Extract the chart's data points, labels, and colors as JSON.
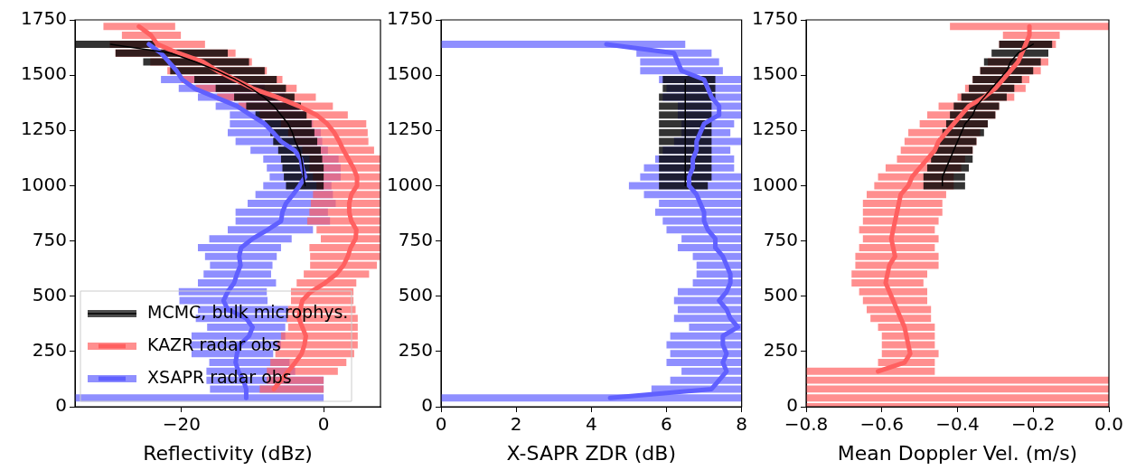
{
  "chart_data": [
    {
      "type": "line",
      "xlabel": "Reflectivity (dBz)",
      "xlim": [
        -35,
        8
      ],
      "xticks": [
        {
          "value": -20,
          "label": "−20"
        },
        0
      ],
      "ylim": [
        0,
        1750
      ],
      "yticks": [
        0,
        250,
        500,
        750,
        1000,
        1250,
        1500,
        1750
      ],
      "legend": "bottom left",
      "series": [
        {
          "name": "MCMC, bulk microphys.",
          "color": "#000000",
          "values": [
            1640,
            1600,
            1560,
            1520,
            1480,
            1440,
            1400,
            1360,
            1320,
            1280,
            1240,
            1200,
            1160,
            1120,
            1080,
            1040,
            1000
          ],
          "x": [
            -30,
            -21.5,
            -18,
            -15,
            -12.4,
            -10.2,
            -8.4,
            -7,
            -6,
            -5,
            -4.4,
            -4,
            -3.4,
            -3.1,
            -2.9,
            -2.8,
            -2.6
          ],
          "xerrors": [
            [
              -35,
              -23.7
            ],
            [
              -29.3,
              -13.5
            ],
            [
              -25.4,
              -10.5
            ],
            [
              -21.6,
              -8.3
            ],
            [
              -18.2,
              -6.6
            ],
            [
              -15.2,
              -5.3
            ],
            [
              -12.6,
              -4.1
            ],
            [
              -10.9,
              -3.2
            ],
            [
              -9.6,
              -2.4
            ],
            [
              -8.3,
              -1.7
            ],
            [
              -7.5,
              -1.3
            ],
            [
              -7.1,
              -0.9
            ],
            [
              -6.4,
              -0.4
            ],
            [
              -6,
              -0.2
            ],
            [
              -5.8,
              0
            ],
            [
              -5.6,
              0
            ],
            [
              -5.3,
              0
            ]
          ]
        },
        {
          "name": "KAZR radar obs",
          "color": "#ff6060",
          "values": [
            1720,
            1680,
            1640,
            1600,
            1560,
            1520,
            1480,
            1440,
            1400,
            1360,
            1320,
            1280,
            1240,
            1200,
            1160,
            1120,
            1080,
            1040,
            1000,
            960,
            920,
            880,
            840,
            800,
            760,
            720,
            680,
            640,
            600,
            560,
            520,
            480,
            440,
            400,
            360,
            320,
            280,
            240,
            200,
            160,
            120,
            80
          ],
          "x": [
            -26,
            -24.3,
            -23.4,
            -20.5,
            -17,
            -15,
            -12.5,
            -10,
            -6.5,
            -3.5,
            -1,
            0.5,
            1.5,
            2.2,
            2.8,
            3.5,
            4.2,
            4.7,
            4.7,
            3.9,
            3.6,
            3.6,
            3.9,
            4.6,
            4.5,
            3.8,
            3.4,
            2.8,
            1.8,
            0.2,
            -1.8,
            -3,
            -3.3,
            -3.5,
            -3,
            -2.5,
            -2.7,
            -3.1,
            -4,
            -5,
            -6,
            -7
          ],
          "xerrors": [
            [
              -31,
              -20.9
            ],
            [
              -28.4,
              -20.1
            ],
            [
              -30.1,
              -16.7
            ],
            [
              -29.3,
              -12.4
            ],
            [
              -24.4,
              -10.1
            ],
            [
              -22,
              -8
            ],
            [
              -20,
              -5.8
            ],
            [
              -18,
              -3.8
            ],
            [
              -15,
              -1.1
            ],
            [
              -12,
              1.3
            ],
            [
              -9,
              3.4
            ],
            [
              -6,
              6
            ],
            [
              -5,
              6.2
            ],
            [
              -4,
              6.3
            ],
            [
              -3,
              7.1
            ],
            [
              -2,
              8
            ],
            [
              -2,
              8
            ],
            [
              -1.5,
              8
            ],
            [
              -1,
              8
            ],
            [
              -1.5,
              8
            ],
            [
              -1.8,
              8
            ],
            [
              -2,
              8
            ],
            [
              -2.3,
              8
            ],
            [
              -1,
              8
            ],
            [
              -0.4,
              8
            ],
            [
              -2,
              8
            ],
            [
              -1.9,
              8
            ],
            [
              -1.9,
              7.5
            ],
            [
              -2.8,
              6.4
            ],
            [
              -3.8,
              4.6
            ],
            [
              -4.6,
              4.2
            ],
            [
              -4.6,
              4.2
            ],
            [
              -5,
              4.5
            ],
            [
              -5.2,
              4.8
            ],
            [
              -5,
              4.8
            ],
            [
              -6,
              4.8
            ],
            [
              -6.5,
              4.8
            ],
            [
              -6.8,
              4.3
            ],
            [
              -7.5,
              3.2
            ],
            [
              -8,
              2
            ],
            [
              -8,
              0
            ],
            [
              -9,
              0
            ]
          ]
        },
        {
          "name": "XSAPR radar obs",
          "color": "#6060ff",
          "values": [
            1640,
            1600,
            1560,
            1520,
            1480,
            1440,
            1400,
            1360,
            1320,
            1280,
            1240,
            1200,
            1160,
            1120,
            1080,
            1040,
            1000,
            960,
            920,
            880,
            840,
            800,
            760,
            720,
            680,
            640,
            600,
            560,
            520,
            480,
            440,
            400,
            360,
            320,
            280,
            240,
            200,
            160,
            120,
            80,
            40
          ],
          "x": [
            -24.6,
            -22.9,
            -21.8,
            -20.7,
            -19.9,
            -18.2,
            -15.2,
            -12.2,
            -10.3,
            -8.3,
            -7.1,
            -6,
            -4.1,
            -3.2,
            -3,
            -2.6,
            -3.4,
            -4.3,
            -5.3,
            -5.8,
            -6,
            -7.9,
            -10,
            -11.6,
            -11.9,
            -11.7,
            -12.2,
            -12.6,
            -13.5,
            -14.1,
            -13.5,
            -10.9,
            -10,
            -10.5,
            -11.8,
            -12.2,
            -12.4,
            -12,
            -11.3,
            -10.9,
            -10.9
          ],
          "xerrors": [
            null,
            null,
            null,
            null,
            [
              -22.9,
              -11.8
            ],
            [
              -20.4,
              -8.3
            ],
            [
              -17.7,
              -5.5
            ],
            [
              -15.2,
              -3.5
            ],
            [
              -13.2,
              -2.5
            ],
            [
              -13.2,
              -1.5
            ],
            [
              -13.5,
              -0.4
            ],
            [
              -12.4,
              -0.2
            ],
            [
              -10.3,
              0.6
            ],
            [
              -8.5,
              2.1
            ],
            [
              -8,
              2.4
            ],
            [
              -7.6,
              2.4
            ],
            [
              -8.5,
              1.1
            ],
            [
              -9.6,
              1.3
            ],
            [
              -10.7,
              1.7
            ],
            [
              -12.4,
              0.6
            ],
            [
              -12.4,
              0.9
            ],
            [
              -13.5,
              -1.5
            ],
            [
              -16.1,
              -4.5
            ],
            [
              -17.7,
              -6
            ],
            [
              -16.7,
              -6.6
            ],
            [
              -16,
              -7.2
            ],
            [
              -16.9,
              -7.4
            ],
            [
              -17.7,
              -6.7
            ],
            [
              -20.4,
              -8
            ],
            [
              -20.3,
              -7.9
            ],
            [
              -17.7,
              -5
            ],
            [
              -18,
              -5.1
            ],
            [
              -16.4,
              -5.4
            ],
            [
              -18.6,
              -5.4
            ],
            [
              -18.8,
              -6
            ],
            [
              -18.6,
              -7.1
            ],
            [
              -16.1,
              -4.8
            ],
            [
              -16.5,
              -4
            ],
            [
              -16.5,
              0
            ],
            [
              -16,
              0
            ],
            [
              -35,
              0
            ]
          ]
        }
      ]
    },
    {
      "type": "line",
      "xlabel": "X-SAPR ZDR (dB)",
      "xlim": [
        0,
        8
      ],
      "xticks": [
        0,
        2,
        4,
        6,
        8
      ],
      "ylim": [
        0,
        1750
      ],
      "yticks": [
        0,
        250,
        500,
        750,
        1000,
        1250,
        1500,
        1750
      ],
      "series": [
        {
          "color": "#000000",
          "values": [
            1480,
            1440,
            1400,
            1360,
            1320,
            1280,
            1240,
            1200,
            1160,
            1120,
            1080,
            1040,
            1000
          ],
          "x": [
            6.5,
            6.5,
            6.5,
            6.5,
            6.5,
            6.5,
            6.5,
            6.5,
            6.5,
            6.5,
            6.5,
            6.5,
            6.5
          ],
          "xerrors": [
            [
              5.9,
              7.3
            ],
            [
              5.9,
              7.3
            ],
            [
              5.8,
              7.3
            ],
            [
              5.8,
              7.2
            ],
            [
              5.8,
              7.2
            ],
            [
              5.8,
              7.2
            ],
            [
              5.8,
              7.2
            ],
            [
              5.8,
              7.2
            ],
            [
              5.8,
              7.2
            ],
            [
              5.8,
              7.2
            ],
            [
              5.8,
              7.2
            ],
            [
              5.8,
              7.2
            ],
            [
              5.8,
              7.1
            ]
          ]
        },
        {
          "color": "#6060ff",
          "values": [
            1640,
            1600,
            1560,
            1520,
            1480,
            1440,
            1400,
            1360,
            1320,
            1280,
            1240,
            1200,
            1160,
            1120,
            1080,
            1040,
            1000,
            960,
            920,
            880,
            840,
            800,
            760,
            720,
            680,
            640,
            600,
            560,
            520,
            480,
            440,
            400,
            360,
            320,
            280,
            240,
            200,
            160,
            120,
            80,
            40
          ],
          "x": [
            4.4,
            6.2,
            6.3,
            6.4,
            7,
            7.1,
            7.2,
            7.4,
            7.4,
            7,
            6.9,
            6.8,
            6.8,
            6.7,
            6.7,
            6.6,
            6.6,
            6.8,
            6.9,
            7,
            7,
            7.1,
            7.3,
            7.3,
            7.5,
            7.6,
            7.7,
            7.7,
            7.6,
            7.4,
            7.6,
            7.7,
            7.9,
            7.5,
            7.5,
            7.6,
            7.5,
            7.6,
            7.4,
            7.2,
            4.5
          ],
          "xerrors": [
            [
              0,
              6.5
            ],
            [
              5.2,
              7.2
            ],
            [
              5.3,
              7.4
            ],
            [
              5.3,
              7.5
            ],
            [
              5.8,
              8
            ],
            [
              6,
              8
            ],
            [
              5.9,
              8
            ],
            [
              6.3,
              8
            ],
            [
              6.3,
              8
            ],
            [
              6.4,
              7.8
            ],
            [
              6.4,
              7.7
            ],
            [
              6.2,
              8
            ],
            [
              5.9,
              7.7
            ],
            [
              5.7,
              7.8
            ],
            [
              5.4,
              7.8
            ],
            [
              5.3,
              8
            ],
            [
              5,
              8
            ],
            [
              5.4,
              8
            ],
            [
              5.8,
              8
            ],
            [
              5.7,
              8
            ],
            [
              5.9,
              8
            ],
            [
              6,
              8
            ],
            [
              6.4,
              8
            ],
            [
              6.3,
              8
            ],
            [
              6.7,
              8
            ],
            [
              6.8,
              8
            ],
            [
              6.8,
              8
            ],
            [
              6.7,
              8
            ],
            [
              6.3,
              8
            ],
            [
              6.2,
              8
            ],
            [
              6.3,
              8
            ],
            [
              6.2,
              8
            ],
            [
              6.6,
              8
            ],
            [
              6.1,
              8
            ],
            [
              6,
              8
            ],
            [
              6.1,
              8
            ],
            [
              6,
              8
            ],
            [
              6.4,
              8
            ],
            [
              6.1,
              8
            ],
            [
              5.6,
              8
            ],
            [
              0,
              8
            ]
          ]
        }
      ]
    },
    {
      "type": "line",
      "xlabel": "Mean Doppler Vel. (m/s)",
      "xlim": [
        -0.8,
        0
      ],
      "xticks": [
        {
          "value": -0.8,
          "label": "−0.8"
        },
        {
          "value": -0.6,
          "label": "−0.6"
        },
        {
          "value": -0.4,
          "label": "−0.4"
        },
        {
          "value": -0.2,
          "label": "−0.2"
        },
        {
          "value": 0,
          "label": "0.0"
        }
      ],
      "ylim": [
        0,
        1750
      ],
      "yticks": [
        0,
        250,
        500,
        750,
        1000,
        1250,
        1500,
        1750
      ],
      "bands": [
        {
          "axis": "y",
          "from": 104,
          "to": 136,
          "color": "#ff6060"
        },
        {
          "axis": "y",
          "from": 64,
          "to": 96,
          "color": "#ff6060"
        },
        {
          "axis": "y",
          "from": 24,
          "to": 56,
          "color": "#ff6060"
        },
        {
          "axis": "y",
          "from": 0,
          "to": 16,
          "color": "#ff6060"
        }
      ],
      "series": [
        {
          "color": "#000000",
          "values": [
            1640,
            1600,
            1560,
            1520,
            1480,
            1440,
            1400,
            1360,
            1320,
            1280,
            1240,
            1200,
            1160,
            1120,
            1080,
            1040,
            1000
          ],
          "x": [
            -0.2,
            -0.24,
            -0.26,
            -0.27,
            -0.29,
            -0.31,
            -0.33,
            -0.35,
            -0.36,
            -0.38,
            -0.39,
            -0.4,
            -0.41,
            -0.42,
            -0.43,
            -0.44,
            -0.44
          ],
          "xerrors": [
            [
              -0.29,
              -0.15
            ],
            [
              -0.31,
              -0.16
            ],
            [
              -0.33,
              -0.18
            ],
            [
              -0.34,
              -0.2
            ],
            [
              -0.36,
              -0.23
            ],
            [
              -0.37,
              -0.25
            ],
            [
              -0.39,
              -0.27
            ],
            [
              -0.41,
              -0.29
            ],
            [
              -0.42,
              -0.3
            ],
            [
              -0.43,
              -0.32
            ],
            [
              -0.44,
              -0.33
            ],
            [
              -0.45,
              -0.35
            ],
            [
              -0.46,
              -0.36
            ],
            [
              -0.47,
              -0.36
            ],
            [
              -0.48,
              -0.37
            ],
            [
              -0.49,
              -0.38
            ],
            [
              -0.49,
              -0.38
            ]
          ]
        },
        {
          "color": "#ff6060",
          "values": [
            1720,
            1680,
            1640,
            1600,
            1560,
            1520,
            1480,
            1440,
            1400,
            1360,
            1320,
            1280,
            1240,
            1200,
            1160,
            1120,
            1080,
            1040,
            1000,
            960,
            920,
            880,
            840,
            800,
            760,
            720,
            680,
            640,
            600,
            560,
            520,
            480,
            440,
            400,
            360,
            320,
            280,
            240,
            200,
            160
          ],
          "x": [
            -0.21,
            -0.21,
            -0.22,
            -0.23,
            -0.24,
            -0.26,
            -0.28,
            -0.3,
            -0.33,
            -0.37,
            -0.39,
            -0.41,
            -0.43,
            -0.45,
            -0.46,
            -0.48,
            -0.5,
            -0.52,
            -0.53,
            -0.55,
            -0.555,
            -0.56,
            -0.565,
            -0.57,
            -0.575,
            -0.57,
            -0.565,
            -0.58,
            -0.585,
            -0.59,
            -0.58,
            -0.57,
            -0.56,
            -0.55,
            -0.54,
            -0.535,
            -0.53,
            -0.525,
            -0.54,
            -0.61
          ],
          "xerrors": [
            [
              -0.42,
              0
            ],
            [
              -0.28,
              -0.13
            ],
            [
              -0.29,
              -0.14
            ],
            null,
            [
              -0.32,
              -0.16
            ],
            [
              -0.34,
              -0.18
            ],
            [
              -0.36,
              -0.21
            ],
            [
              -0.38,
              -0.22
            ],
            [
              -0.4,
              -0.25
            ],
            [
              -0.45,
              -0.29
            ],
            [
              -0.48,
              -0.3
            ],
            [
              -0.5,
              -0.32
            ],
            [
              -0.53,
              -0.34
            ],
            [
              -0.54,
              -0.35
            ],
            [
              -0.55,
              -0.36
            ],
            [
              -0.56,
              -0.38
            ],
            [
              -0.59,
              -0.39
            ],
            [
              -0.61,
              -0.41
            ],
            [
              -0.62,
              -0.41
            ],
            [
              -0.64,
              -0.43
            ],
            [
              -0.65,
              -0.44
            ],
            [
              -0.65,
              -0.44
            ],
            [
              -0.65,
              -0.45
            ],
            [
              -0.66,
              -0.46
            ],
            [
              -0.65,
              -0.45
            ],
            [
              -0.66,
              -0.46
            ],
            [
              -0.67,
              -0.45
            ],
            [
              -0.67,
              -0.45
            ],
            [
              -0.68,
              -0.48
            ],
            [
              -0.68,
              -0.49
            ],
            [
              -0.66,
              -0.48
            ],
            [
              -0.65,
              -0.48
            ],
            [
              -0.64,
              -0.47
            ],
            [
              -0.63,
              -0.47
            ],
            [
              -0.61,
              -0.46
            ],
            [
              -0.6,
              -0.46
            ],
            [
              -0.6,
              -0.46
            ],
            [
              -0.6,
              -0.45
            ],
            [
              -0.61,
              -0.46
            ],
            [
              -0.8,
              -0.46
            ]
          ]
        }
      ]
    }
  ]
}
